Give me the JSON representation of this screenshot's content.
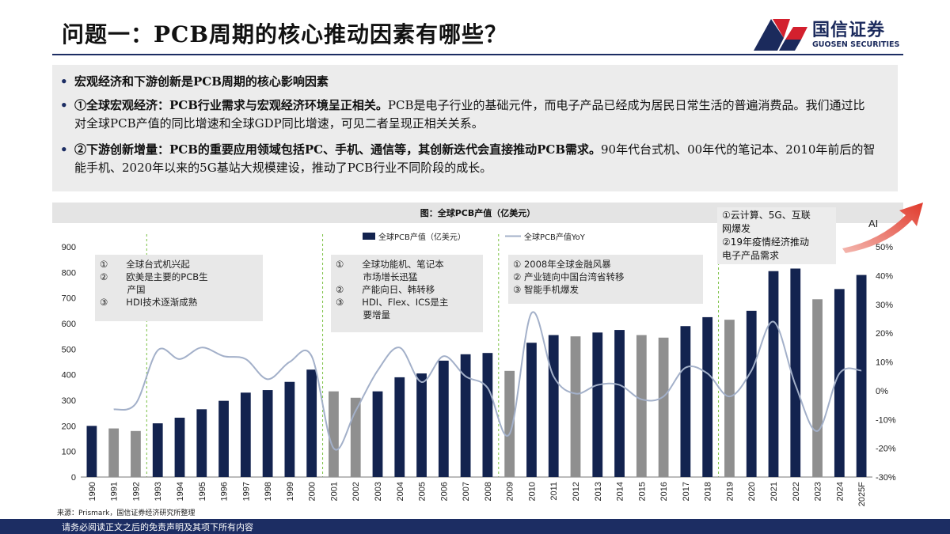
{
  "page": {
    "title": "问题一：PCB周期的核心推动因素有哪些？",
    "logo_cn": "国信证券",
    "logo_en": "GUOSEN SECURITIES",
    "footer": "请务必阅读正文之后的免责声明及其项下所有内容",
    "source": "来源：Prismark，国信证券经济研究所整理"
  },
  "bullets": [
    {
      "bold": "宏观经济和下游创新是PCB周期的核心影响因素",
      "text": ""
    },
    {
      "bold": "①全球宏观经济：PCB行业需求与宏观经济环境呈正相关。",
      "text": "PCB是电子行业的基础元件，而电子产品已经成为居民日常生活的普遍消费品。我们通过比对全球PCB产值的同比增速和全球GDP同比增速，可见二者呈现正相关关系。"
    },
    {
      "bold": "②下游创新增量：PCB的重要应用领域包括PC、手机、通信等，其创新迭代会直接推动PCB需求。",
      "text": "90年代台式机、00年代的笔记本、2010年前后的智能手机、2020年以来的5G基站大规模建设，推动了PCB行业不同阶段的成长。"
    }
  ],
  "annotations": {
    "a1": [
      "①　　全球台式机兴起",
      "②　　欧美是主要的PCB生",
      "　　　产国",
      "③　　HDI技术逐渐成熟"
    ],
    "a2": [
      "①　　全球功能机、笔记本",
      "　　　市场增长迅猛",
      "②　　产能向日、韩转移",
      "③　　HDI、Flex、ICS是主",
      "　　　要增量"
    ],
    "a3": [
      "① 2008年全球金融风暴",
      "② 产业链向中国台湾省转移",
      "③ 智能手机爆发"
    ],
    "a4": [
      "①云计算、5G、互联",
      "网爆发",
      "②19年疫情经济推动",
      "电子产品需求"
    ]
  },
  "ai_label": "AI",
  "chart_data": {
    "type": "bar",
    "title": "图：全球PCB产值（亿美元）",
    "legend": [
      "全球PCB产值（亿美元）",
      "全球PCB产值YoY"
    ],
    "categories": [
      "1990",
      "1991",
      "1992",
      "1993",
      "1994",
      "1995",
      "1996",
      "1997",
      "1998",
      "1999",
      "2000",
      "2001",
      "2002",
      "2003",
      "2004",
      "2005",
      "2006",
      "2007",
      "2008",
      "2009",
      "2010",
      "2011",
      "2012",
      "2013",
      "2014",
      "2015",
      "2016",
      "2017",
      "2018",
      "2019",
      "2020",
      "2021",
      "2022",
      "2023",
      "2024",
      "2025F"
    ],
    "series": [
      {
        "name": "全球PCB产值（亿美元）",
        "axis": "left",
        "values": [
          200,
          190,
          180,
          210,
          232,
          265,
          298,
          330,
          340,
          372,
          420,
          335,
          310,
          335,
          390,
          405,
          455,
          480,
          485,
          415,
          525,
          555,
          550,
          565,
          575,
          555,
          545,
          590,
          625,
          615,
          650,
          805,
          815,
          695,
          735,
          790
        ],
        "gray_indices": [
          1,
          2,
          11,
          12,
          19,
          22,
          25,
          26,
          29,
          33
        ]
      },
      {
        "name": "全球PCB产值YoY",
        "axis": "right",
        "values": [
          null,
          -6.5,
          -4.5,
          14,
          11,
          15,
          12,
          11,
          4,
          10,
          12,
          -20,
          -7,
          7,
          15,
          3,
          12,
          5,
          1,
          -15,
          27,
          5,
          -1,
          2,
          2,
          -3,
          -2,
          8,
          6,
          -2,
          7,
          24,
          2,
          -14,
          6,
          7
        ]
      }
    ],
    "left_axis": {
      "min": 0,
      "max": 900,
      "ticks": [
        0,
        100,
        200,
        300,
        400,
        500,
        600,
        700,
        800,
        900
      ]
    },
    "right_axis": {
      "min": -30,
      "max": 50,
      "ticks": [
        -30,
        -20,
        -10,
        0,
        10,
        20,
        30,
        40,
        50
      ],
      "unit": "%"
    },
    "colors": {
      "bar": "#13234f",
      "bar_gray": "#8f8f8f",
      "line": "#a3b0c9",
      "divider": "#7ac142"
    },
    "divider_after": [
      "1992",
      "2000",
      "2008",
      "2018"
    ],
    "grid": false
  }
}
